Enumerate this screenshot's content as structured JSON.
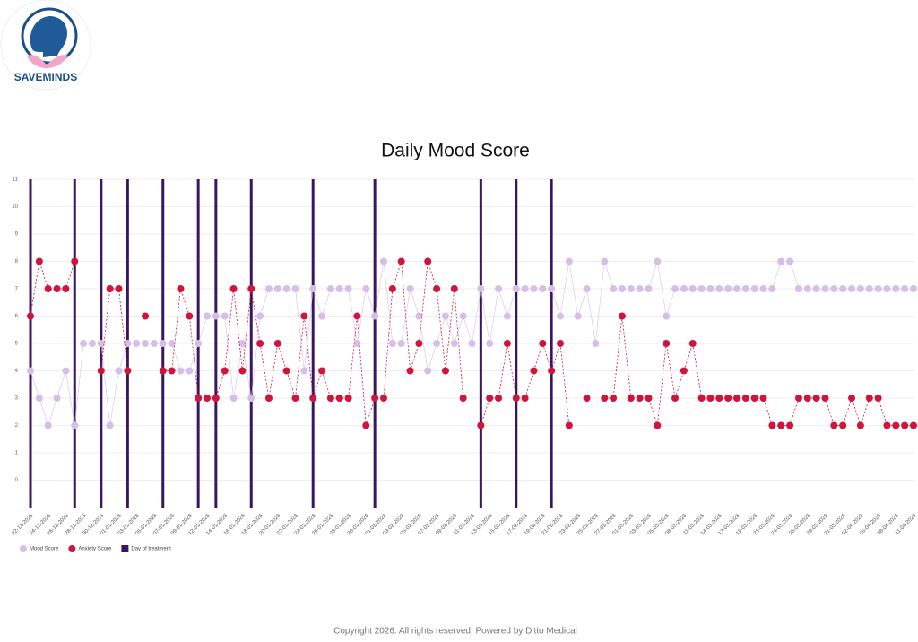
{
  "brand": "SAVEMINDS",
  "footer": "Copyright  2026. All rights reserved. Powered by Ditto Medical",
  "chart_data": {
    "type": "line",
    "title": "Daily Mood Score",
    "categories": [
      "22-12-2025",
      null,
      "24-12-2025",
      null,
      "26-12-2025",
      null,
      "28-12-2025",
      null,
      "30-12-2025",
      null,
      "01-01-2026",
      null,
      "03-01-2026",
      null,
      "05-01-2026",
      null,
      "07-01-2026",
      null,
      "09-01-2026",
      null,
      "12-01-2026",
      null,
      "14-01-2026",
      null,
      "16-01-2026",
      null,
      "18-01-2026",
      null,
      "20-01-2026",
      null,
      "22-01-2026",
      null,
      "24-01-2026",
      null,
      "26-01-2026",
      null,
      "28-01-2026",
      null,
      "30-01-2026",
      null,
      "01-02-2026",
      null,
      "03-02-2026",
      null,
      "05-02-2026",
      null,
      "07-02-2026",
      null,
      "09-02-2026",
      null,
      "11-02-2026",
      null,
      "13-02-2026",
      null,
      "15-02-2026",
      null,
      "17-02-2026",
      null,
      "19-02-2026",
      null,
      "21-02-2026",
      null,
      "23-02-2026",
      null,
      "25-02-2026",
      null,
      "27-02-2026",
      null,
      "01-03-2026",
      null,
      "03-03-2026",
      null,
      "05-03-2026",
      null,
      "08-03-2026",
      null,
      "11-03-2026",
      null,
      "14-03-2026",
      null,
      "17-03-2026",
      null,
      "19-03-2026",
      null,
      "21-03-2026",
      null,
      "24-03-2026",
      null,
      "26-03-2026",
      null,
      "29-03-2026",
      null,
      "31-03-2026",
      null,
      "02-04-2026",
      null,
      "05-04-2026",
      null,
      "08-04-2026",
      null,
      "11-04-2026"
    ],
    "series": [
      {
        "name": "Mood Score",
        "color": "#d5bfe6",
        "dashed": false,
        "values": [
          4,
          3,
          2,
          3,
          4,
          2,
          5,
          5,
          5,
          2,
          4,
          5,
          5,
          5,
          5,
          5,
          5,
          4,
          4,
          5,
          6,
          6,
          6,
          3,
          5,
          3,
          6,
          7,
          7,
          7,
          7,
          4,
          7,
          6,
          7,
          7,
          7,
          5,
          7,
          6,
          8,
          5,
          5,
          7,
          6,
          4,
          5,
          6,
          5,
          6,
          5,
          7,
          5,
          7,
          6,
          7,
          7,
          7,
          7,
          7,
          6,
          8,
          6,
          7,
          5,
          8,
          7,
          7,
          7,
          7,
          7,
          8,
          6,
          7,
          7,
          7,
          7,
          7,
          7,
          7,
          7,
          7,
          7,
          7,
          7,
          8,
          8,
          7,
          7,
          7,
          7,
          7,
          7,
          7,
          7,
          7,
          7,
          7,
          7,
          7,
          7
        ]
      },
      {
        "name": "Anxiety Score",
        "color": "#d0143c",
        "dashed": true,
        "values": [
          6,
          8,
          7,
          7,
          7,
          8,
          null,
          null,
          4,
          7,
          7,
          4,
          null,
          6,
          null,
          4,
          4,
          7,
          6,
          3,
          3,
          3,
          4,
          7,
          4,
          7,
          5,
          3,
          5,
          4,
          3,
          6,
          3,
          4,
          3,
          3,
          3,
          6,
          2,
          3,
          3,
          7,
          8,
          4,
          5,
          8,
          7,
          4,
          7,
          3,
          null,
          2,
          3,
          3,
          5,
          3,
          3,
          4,
          5,
          4,
          5,
          2,
          null,
          3,
          null,
          3,
          3,
          6,
          3,
          3,
          3,
          2,
          5,
          3,
          4,
          5,
          3,
          3,
          3,
          3,
          3,
          3,
          3,
          3,
          2,
          2,
          2,
          3,
          3,
          3,
          3,
          2,
          2,
          3,
          2,
          3,
          3,
          2,
          2,
          2,
          2
        ]
      }
    ],
    "treatments": {
      "name": "Day of treatment",
      "color": "#3b1660",
      "indices": [
        0,
        5,
        8,
        11,
        15,
        19,
        21,
        25,
        32,
        39,
        51,
        55,
        59
      ]
    },
    "ylim": [
      -1,
      11
    ],
    "yticks": [
      0,
      1,
      2,
      3,
      4,
      5,
      6,
      7,
      8,
      9,
      10,
      11
    ],
    "grid": true,
    "legend": "bottom-left"
  }
}
